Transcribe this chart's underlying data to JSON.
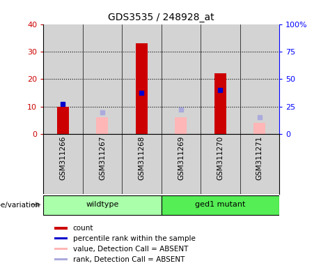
{
  "title": "GDS3535 / 248928_at",
  "samples": [
    "GSM311266",
    "GSM311267",
    "GSM311268",
    "GSM311269",
    "GSM311270",
    "GSM311271"
  ],
  "count_values": [
    10,
    0,
    33,
    0,
    22,
    0
  ],
  "percentile_rank": [
    27.5,
    null,
    37.5,
    null,
    40.0,
    null
  ],
  "absent_value_left": [
    null,
    6.0,
    null,
    6.0,
    null,
    4.0
  ],
  "absent_rank_pct": [
    null,
    20.0,
    null,
    22.5,
    null,
    15.0
  ],
  "ylim_left": [
    0,
    40
  ],
  "ylim_right": [
    0,
    100
  ],
  "yticks_left": [
    0,
    10,
    20,
    30,
    40
  ],
  "yticks_right": [
    0,
    25,
    50,
    75,
    100
  ],
  "yticklabels_right": [
    "0",
    "25",
    "50",
    "75",
    "100%"
  ],
  "grid_lines": [
    10,
    20,
    30
  ],
  "bar_color_red": "#cc0000",
  "bar_color_pink": "#ffb6b6",
  "dot_color_blue": "#0000cc",
  "dot_color_lightblue": "#aaaadd",
  "plot_bg": "#d3d3d3",
  "wildtype_bg": "#aaffaa",
  "mutant_bg": "#55ee55",
  "bar_width": 0.3,
  "wildtype_label": "wildtype",
  "mutant_label": "ged1 mutant",
  "genotype_label": "genotype/variation",
  "legend_items": [
    {
      "label": "count",
      "color": "#cc0000",
      "type": "square"
    },
    {
      "label": "percentile rank within the sample",
      "color": "#0000cc",
      "type": "square"
    },
    {
      "label": "value, Detection Call = ABSENT",
      "color": "#ffb6b6",
      "type": "square"
    },
    {
      "label": "rank, Detection Call = ABSENT",
      "color": "#aaaadd",
      "type": "square"
    }
  ]
}
